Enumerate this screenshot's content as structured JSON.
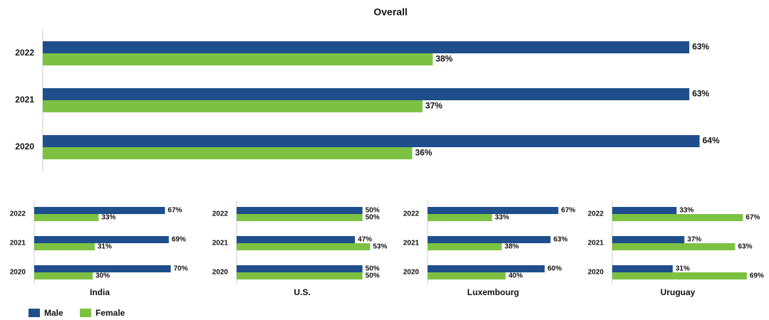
{
  "chart_data": [
    {
      "type": "bar",
      "title": "Overall",
      "orientation": "horizontal",
      "categories": [
        "2022",
        "2021",
        "2020"
      ],
      "xlim": [
        0,
        70
      ],
      "series": [
        {
          "name": "Male",
          "color": "#1f4e8c",
          "values": [
            63,
            63,
            64
          ],
          "value_labels": [
            "63%",
            "63%",
            "64%"
          ]
        },
        {
          "name": "Female",
          "color": "#7dc142",
          "values": [
            38,
            37,
            36
          ],
          "value_labels": [
            "38%",
            "37%",
            "36%"
          ]
        }
      ]
    },
    {
      "type": "bar",
      "title": "India",
      "orientation": "horizontal",
      "categories": [
        "2022",
        "2021",
        "2020"
      ],
      "xlim": [
        0,
        80
      ],
      "series": [
        {
          "name": "Male",
          "color": "#1f4e8c",
          "values": [
            67,
            69,
            70
          ],
          "value_labels": [
            "67%",
            "69%",
            "70%"
          ]
        },
        {
          "name": "Female",
          "color": "#7dc142",
          "values": [
            33,
            31,
            30
          ],
          "value_labels": [
            "33%",
            "31%",
            "30%"
          ]
        }
      ]
    },
    {
      "type": "bar",
      "title": "U.S.",
      "orientation": "horizontal",
      "categories": [
        "2022",
        "2021",
        "2020"
      ],
      "xlim": [
        0,
        62
      ],
      "series": [
        {
          "name": "Male",
          "color": "#1f4e8c",
          "values": [
            50,
            47,
            50
          ],
          "value_labels": [
            "50%",
            "47%",
            "50%"
          ]
        },
        {
          "name": "Female",
          "color": "#7dc142",
          "values": [
            50,
            53,
            50
          ],
          "value_labels": [
            "50%",
            "53%",
            "50%"
          ]
        }
      ]
    },
    {
      "type": "bar",
      "title": "Luxembourg",
      "orientation": "horizontal",
      "categories": [
        "2022",
        "2021",
        "2020"
      ],
      "xlim": [
        0,
        80
      ],
      "series": [
        {
          "name": "Male",
          "color": "#1f4e8c",
          "values": [
            67,
            63,
            60
          ],
          "value_labels": [
            "67%",
            "63%",
            "60%"
          ]
        },
        {
          "name": "Female",
          "color": "#7dc142",
          "values": [
            33,
            38,
            40
          ],
          "value_labels": [
            "33%",
            "38%",
            "40%"
          ]
        }
      ]
    },
    {
      "type": "bar",
      "title": "Uruguay",
      "orientation": "horizontal",
      "categories": [
        "2022",
        "2021",
        "2020"
      ],
      "xlim": [
        0,
        80
      ],
      "series": [
        {
          "name": "Male",
          "color": "#1f4e8c",
          "values": [
            33,
            37,
            31
          ],
          "value_labels": [
            "33%",
            "37%",
            "31%"
          ]
        },
        {
          "name": "Female",
          "color": "#7dc142",
          "values": [
            67,
            63,
            69
          ],
          "value_labels": [
            "67%",
            "63%",
            "69%"
          ]
        }
      ]
    }
  ]
}
